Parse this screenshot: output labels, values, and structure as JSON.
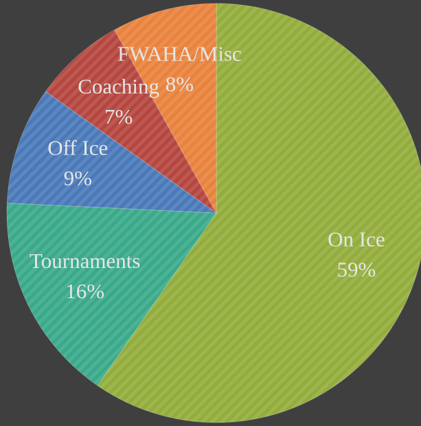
{
  "chart_data": {
    "type": "pie",
    "categories": [
      "On Ice",
      "Tournaments",
      "Off Ice",
      "Coaching",
      "FWAHA/Misc"
    ],
    "values": [
      59,
      16,
      9,
      7,
      8
    ],
    "value_labels": [
      "59%",
      "16%",
      "9%",
      "7%",
      "8%"
    ],
    "colors": [
      "#93ad3c",
      "#3aa98a",
      "#4a79b9",
      "#b5463f",
      "#e9823c"
    ]
  }
}
